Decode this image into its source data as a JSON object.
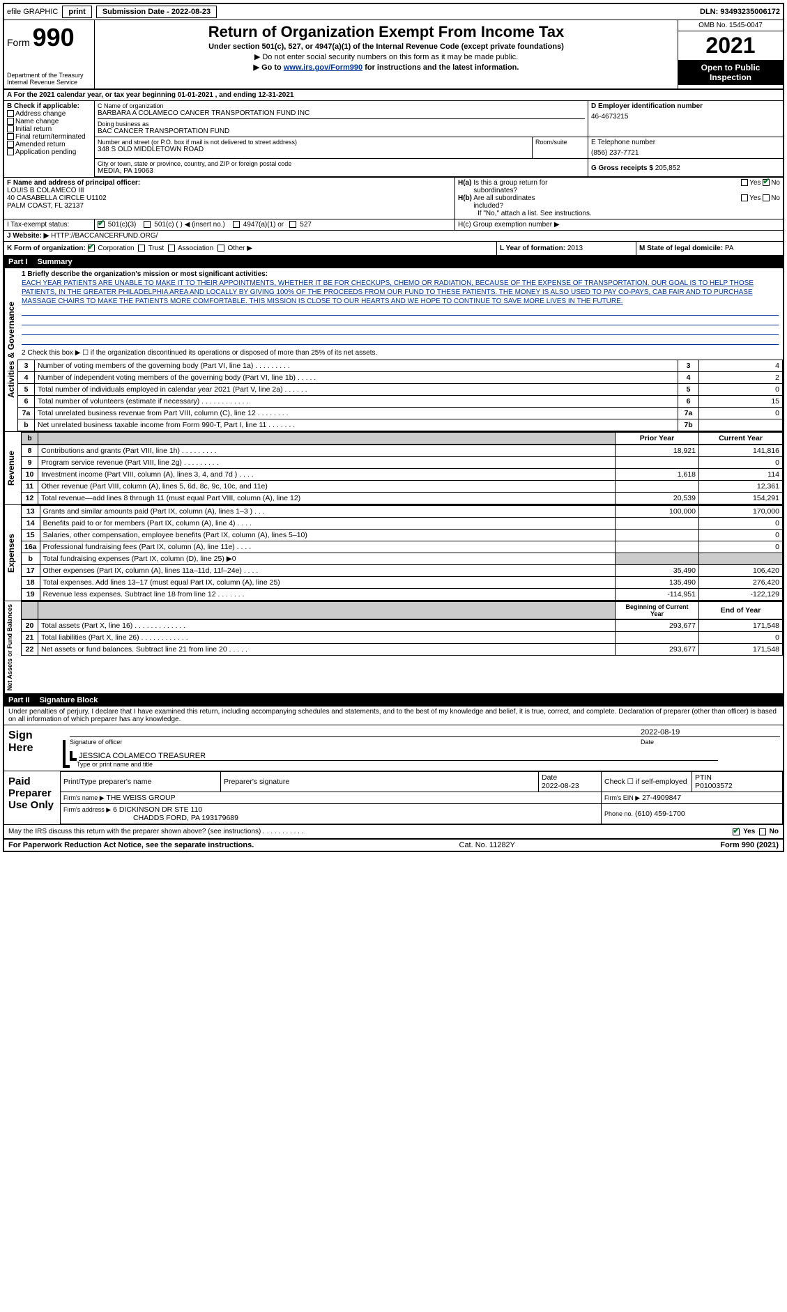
{
  "topbar": {
    "efile": "efile GRAPHIC",
    "print": "print",
    "submission_label": "Submission Date - 2022-08-23",
    "dln": "DLN: 93493235006172"
  },
  "header": {
    "form_label": "Form",
    "form_number": "990",
    "dept": "Department of the Treasury",
    "irs": "Internal Revenue Service",
    "title": "Return of Organization Exempt From Income Tax",
    "subtitle": "Under section 501(c), 527, or 4947(a)(1) of the Internal Revenue Code (except private foundations)",
    "note1": "▶ Do not enter social security numbers on this form as it may be made public.",
    "note2_pre": "▶ Go to ",
    "note2_link": "www.irs.gov/Form990",
    "note2_post": " for instructions and the latest information.",
    "omb": "OMB No. 1545-0047",
    "year": "2021",
    "open": "Open to Public Inspection"
  },
  "period": {
    "text": "A For the 2021 calendar year, or tax year beginning 01-01-2021    , and ending 12-31-2021"
  },
  "checkboxes": {
    "label": "B Check if applicable:",
    "items": [
      "Address change",
      "Name change",
      "Initial return",
      "Final return/terminated",
      "Amended return",
      "Application pending"
    ]
  },
  "org": {
    "c_label": "C Name of organization",
    "name": "BARBARA A COLAMECO CANCER TRANSPORTATION FUND INC",
    "dba_label": "Doing business as",
    "dba": "BAC CANCER TRANSPORTATION FUND",
    "addr_label": "Number and street (or P.O. box if mail is not delivered to street address)",
    "room_label": "Room/suite",
    "addr": "348 S OLD MIDDLETOWN ROAD",
    "city_label": "City or town, state or province, country, and ZIP or foreign postal code",
    "city": "MEDIA, PA  19063",
    "d_label": "D Employer identification number",
    "ein": "46-4673215",
    "e_label": "E Telephone number",
    "phone": "(856) 237-7721",
    "g_label": "G Gross receipts $",
    "g_val": "205,852"
  },
  "officer": {
    "f_label": "F  Name and address of principal officer:",
    "name": "LOUIS B COLAMECO III",
    "addr1": "40 CASABELLA CIRCLE U1102",
    "addr2": "PALM COAST, FL  32137"
  },
  "h": {
    "ha": "H(a)  Is this a group return for subordinates?",
    "hb": "H(b)  Are all subordinates included?",
    "hc_note": "If \"No,\" attach a list. See instructions.",
    "hc": "H(c)  Group exemption number ▶",
    "yes": "Yes",
    "no": "No"
  },
  "tax_status": {
    "label": "I    Tax-exempt status:",
    "opts": [
      "501(c)(3)",
      "501(c) (  ) ◀ (insert no.)",
      "4947(a)(1) or",
      "527"
    ]
  },
  "website": {
    "label": "J   Website: ▶",
    "url": "HTTP://BACCANCERFUND.ORG/"
  },
  "k": {
    "label": "K Form of organization:",
    "opts": [
      "Corporation",
      "Trust",
      "Association",
      "Other ▶"
    ]
  },
  "l": {
    "label": "L Year of formation:",
    "val": "2013"
  },
  "m": {
    "label": "M State of legal domicile:",
    "val": "PA"
  },
  "part1": {
    "label": "Part I",
    "title": "Summary"
  },
  "summary": {
    "line1_label": "1  Briefly describe the organization's mission or most significant activities:",
    "mission": "EACH YEAR PATIENTS ARE UNABLE TO MAKE IT TO THEIR APPOINTMENTS, WHETHER IT BE FOR CHECKUPS, CHEMO OR RADIATION, BECAUSE OF THE EXPENSE OF TRANSPORTATION. OUR GOAL IS TO HELP THOSE PATIENTS, IN THE GREATER PHILADELPHIA AREA AND LOCALLY BY GIVING 100% OF THE PROCEEDS FROM OUR FUND TO THESE PATIENTS. THE MONEY IS ALSO USED TO PAY CO-PAYS, CAB FAIR AND TO PURCHASE MASSAGE CHAIRS TO MAKE THE PATIENTS MORE COMFORTABLE. THIS MISSION IS CLOSE TO OUR HEARTS AND WE HOPE TO CONTINUE TO SAVE MORE LIVES IN THE FUTURE.",
    "line2": "2  Check this box ▶ ☐ if the organization discontinued its operations or disposed of more than 25% of its net assets.",
    "rows_top": [
      {
        "n": "3",
        "label": "Number of voting members of the governing body (Part VI, line 1a)  .    .    .    .    .    .    .    .    .",
        "box": "3",
        "val": "4"
      },
      {
        "n": "4",
        "label": "Number of independent voting members of the governing body (Part VI, line 1b)   .    .    .    .    .",
        "box": "4",
        "val": "2"
      },
      {
        "n": "5",
        "label": "Total number of individuals employed in calendar year 2021 (Part V, line 2a)  .    .    .    .    .    .",
        "box": "5",
        "val": "0"
      },
      {
        "n": "6",
        "label": "Total number of volunteers (estimate if necessary)  .    .    .    .    .    .    .    .    .    .    .    .",
        "box": "6",
        "val": "15"
      },
      {
        "n": "7a",
        "label": "Total unrelated business revenue from Part VIII, column (C), line 12   .    .    .    .    .    .    .    .",
        "box": "7a",
        "val": "0"
      },
      {
        "n": "b",
        "label": "Net unrelated business taxable income from Form 990-T, Part I, line 11  .    .    .    .    .    .    .",
        "box": "7b",
        "val": ""
      }
    ],
    "col_prior": "Prior Year",
    "col_current": "Current Year",
    "revenue_label": "Revenue",
    "revenue_rows": [
      {
        "n": "8",
        "label": "Contributions and grants (Part VIII, line 1h)  .    .    .    .    .    .    .    .    .",
        "p": "18,921",
        "c": "141,816"
      },
      {
        "n": "9",
        "label": "Program service revenue (Part VIII, line 2g)   .    .    .    .    .    .    .    .    .",
        "p": "",
        "c": "0"
      },
      {
        "n": "10",
        "label": "Investment income (Part VIII, column (A), lines 3, 4, and 7d )   .    .    .    .",
        "p": "1,618",
        "c": "114"
      },
      {
        "n": "11",
        "label": "Other revenue (Part VIII, column (A), lines 5, 6d, 8c, 9c, 10c, and 11e)",
        "p": "",
        "c": "12,361"
      },
      {
        "n": "12",
        "label": "Total revenue—add lines 8 through 11 (must equal Part VIII, column (A), line 12)",
        "p": "20,539",
        "c": "154,291"
      }
    ],
    "expenses_label": "Expenses",
    "expenses_rows": [
      {
        "n": "13",
        "label": "Grants and similar amounts paid (Part IX, column (A), lines 1–3 )  .    .    .",
        "p": "100,000",
        "c": "170,000"
      },
      {
        "n": "14",
        "label": "Benefits paid to or for members (Part IX, column (A), line 4)   .    .    .    .",
        "p": "",
        "c": "0"
      },
      {
        "n": "15",
        "label": "Salaries, other compensation, employee benefits (Part IX, column (A), lines 5–10)",
        "p": "",
        "c": "0"
      },
      {
        "n": "16a",
        "label": "Professional fundraising fees (Part IX, column (A), line 11e)   .    .    .    .",
        "p": "",
        "c": "0"
      },
      {
        "n": "b",
        "label": "Total fundraising expenses (Part IX, column (D), line 25) ▶0",
        "p": "shade",
        "c": "shade"
      },
      {
        "n": "17",
        "label": "Other expenses (Part IX, column (A), lines 11a–11d, 11f–24e)   .    .    .    .",
        "p": "35,490",
        "c": "106,420"
      },
      {
        "n": "18",
        "label": "Total expenses. Add lines 13–17 (must equal Part IX, column (A), line 25)",
        "p": "135,490",
        "c": "276,420"
      },
      {
        "n": "19",
        "label": "Revenue less expenses. Subtract line 18 from line 12  .    .    .    .    .    .    .",
        "p": "-114,951",
        "c": "-122,129"
      }
    ],
    "col_begin": "Beginning of Current Year",
    "col_end": "End of Year",
    "assets_label": "Net Assets or Fund Balances",
    "assets_rows": [
      {
        "n": "20",
        "label": "Total assets (Part X, line 16)  .    .    .    .    .    .    .    .    .    .    .    .    .",
        "p": "293,677",
        "c": "171,548"
      },
      {
        "n": "21",
        "label": "Total liabilities (Part X, line 26)   .    .    .    .    .    .    .    .    .    .    .    .",
        "p": "",
        "c": "0"
      },
      {
        "n": "22",
        "label": "Net assets or fund balances. Subtract line 21 from line 20   .    .    .    .    .",
        "p": "293,677",
        "c": "171,548"
      }
    ],
    "gov_label": "Activities & Governance"
  },
  "part2": {
    "label": "Part II",
    "title": "Signature Block"
  },
  "sig": {
    "declaration": "Under penalties of perjury, I declare that I have examined this return, including accompanying schedules and statements, and to the best of my knowledge and belief, it is true, correct, and complete. Declaration of preparer (other than officer) is based on all information of which preparer has any knowledge.",
    "sign_here": "Sign Here",
    "sig_officer": "Signature of officer",
    "date": "2022-08-19",
    "date_label": "Date",
    "officer_name": "JESSICA COLAMECO  TREASURER",
    "type_name": "Type or print name and title",
    "paid": "Paid Preparer Use Only",
    "prep_name_label": "Print/Type preparer's name",
    "prep_sig_label": "Preparer's signature",
    "prep_date_label": "Date",
    "prep_date": "2022-08-23",
    "check_self": "Check ☐ if self-employed",
    "ptin_label": "PTIN",
    "ptin": "P01003572",
    "firm_name_label": "Firm's name    ▶",
    "firm_name": "THE WEISS GROUP",
    "firm_ein_label": "Firm's EIN ▶",
    "firm_ein": "27-4909847",
    "firm_addr_label": "Firm's address ▶",
    "firm_addr": "6 DICKINSON DR STE 110",
    "firm_city": "CHADDS FORD, PA  193179689",
    "phone_label": "Phone no.",
    "phone": "(610) 459-1700",
    "discuss": "May the IRS discuss this return with the preparer shown above? (see instructions)   .    .    .    .    .    .    .    .    .    .    ."
  },
  "footer": {
    "left": "For Paperwork Reduction Act Notice, see the separate instructions.",
    "mid": "Cat. No. 11282Y",
    "right": "Form 990 (2021)"
  }
}
